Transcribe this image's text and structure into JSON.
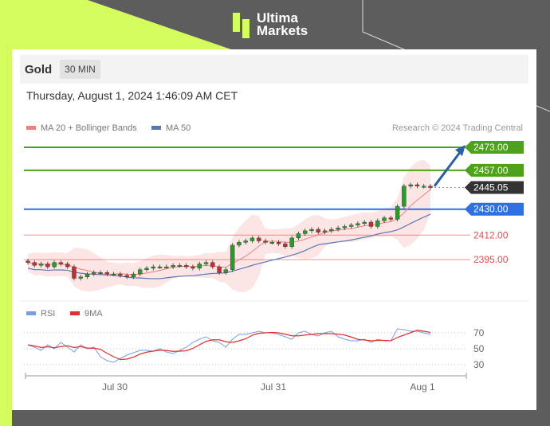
{
  "brand": {
    "line1": "Ultima",
    "line2": "Markets"
  },
  "header": {
    "symbol": "Gold",
    "timeframe": "30 MIN",
    "datetime": "Thursday, August 1, 2024 1:46:09 AM CET"
  },
  "colors": {
    "lime": "#d4fc5c",
    "resistance": "#4ea21a",
    "pivot": "#2f6fe0",
    "support": "#e84a4a",
    "last": "#333333",
    "ma20": "#f08080",
    "ma50": "#5a78b0",
    "rsi": "#7a9ce8",
    "rsi_ma": "#e03030",
    "arrow": "#2a5fa8"
  },
  "chart_data": [
    {
      "type": "candlestick",
      "legend": [
        "MA 20 + Bollinger Bands",
        "MA 50"
      ],
      "credit": "Research © 2024 Trading Central",
      "ylim": [
        2370,
        2475
      ],
      "levels": [
        {
          "value": 2473.0,
          "label": "2473.00",
          "kind": "resistance"
        },
        {
          "value": 2457.0,
          "label": "2457.00",
          "kind": "resistance"
        },
        {
          "value": 2445.05,
          "label": "2445.05",
          "kind": "last"
        },
        {
          "value": 2430.0,
          "label": "2430.00",
          "kind": "pivot"
        },
        {
          "value": 2412.0,
          "label": "2412.00",
          "kind": "support"
        },
        {
          "value": 2395.0,
          "label": "2395.00",
          "kind": "support"
        }
      ],
      "closes": [
        2393,
        2391,
        2392,
        2390,
        2393,
        2392,
        2390,
        2382,
        2383,
        2385,
        2386,
        2386,
        2385,
        2385,
        2384,
        2383,
        2385,
        2388,
        2389,
        2390,
        2390,
        2390,
        2391,
        2391,
        2390,
        2389,
        2392,
        2393,
        2390,
        2386,
        2388,
        2405,
        2407,
        2408,
        2410,
        2408,
        2407,
        2407,
        2406,
        2404,
        2410,
        2413,
        2415,
        2416,
        2414,
        2415,
        2416,
        2417,
        2418,
        2419,
        2420,
        2421,
        2418,
        2422,
        2424,
        2423,
        2432,
        2446,
        2447,
        2446,
        2446,
        2445
      ],
      "x_ticks": [
        "Jul 30",
        "Jul 31",
        "Aug 1"
      ],
      "forecast": "up to 2473.00"
    },
    {
      "type": "line",
      "legend": [
        "RSI",
        "9MA"
      ],
      "ylim": [
        20,
        85
      ],
      "y_ticks": [
        "70",
        "50",
        "30"
      ],
      "rsi": [
        55,
        52,
        48,
        55,
        50,
        58,
        52,
        46,
        55,
        50,
        52,
        40,
        35,
        33,
        38,
        42,
        45,
        48,
        48,
        47,
        50,
        46,
        44,
        48,
        52,
        58,
        62,
        65,
        60,
        58,
        52,
        62,
        68,
        68,
        70,
        72,
        70,
        70,
        68,
        65,
        62,
        70,
        72,
        68,
        66,
        70,
        72,
        65,
        62,
        60,
        60,
        62,
        58,
        62,
        60,
        60,
        75,
        74,
        72,
        72,
        70,
        68
      ]
    }
  ]
}
